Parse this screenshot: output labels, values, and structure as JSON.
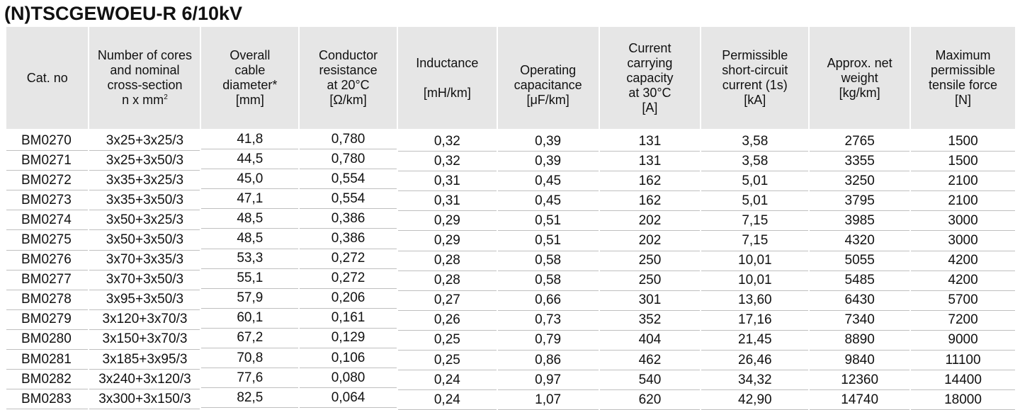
{
  "title": "(N)TSCGEWOEU-R 6/10kV",
  "headers": [
    {
      "lines": [
        "Cat. no"
      ]
    },
    {
      "lines": [
        "Number of cores",
        "and nominal",
        "cross-section",
        "n x mm"
      ],
      "sup": "2"
    },
    {
      "lines": [
        "Overall",
        "cable",
        "diameter*",
        "[mm]"
      ]
    },
    {
      "lines": [
        "Conductor",
        "resistance",
        "at 20°C",
        "[Ω/km]"
      ]
    },
    {
      "lines": [
        "Inductance",
        "",
        "[mH/km]"
      ]
    },
    {
      "lines": [
        "",
        "Operating",
        "capacitance",
        "[μF/km]"
      ]
    },
    {
      "lines": [
        "Current",
        "carrying",
        "capacity",
        "at 30°C",
        "[A]"
      ]
    },
    {
      "lines": [
        "Permissible",
        "short-circuit",
        "current (1s)",
        "[kA]"
      ]
    },
    {
      "lines": [
        "Approx. net",
        "weight",
        "[kg/km]"
      ]
    },
    {
      "lines": [
        "Maximum",
        "permissible",
        "tensile force",
        "[N]"
      ]
    }
  ],
  "rows": [
    [
      "BM0270",
      "3x25+3x25/3",
      "41,8",
      "0,780",
      "0,32",
      "0,39",
      "131",
      "3,58",
      "2765",
      "1500"
    ],
    [
      "BM0271",
      "3x25+3x50/3",
      "44,5",
      "0,780",
      "0,32",
      "0,39",
      "131",
      "3,58",
      "3355",
      "1500"
    ],
    [
      "BM0272",
      "3x35+3x25/3",
      "45,0",
      "0,554",
      "0,31",
      "0,45",
      "162",
      "5,01",
      "3250",
      "2100"
    ],
    [
      "BM0273",
      "3x35+3x50/3",
      "47,1",
      "0,554",
      "0,31",
      "0,45",
      "162",
      "5,01",
      "3795",
      "2100"
    ],
    [
      "BM0274",
      "3x50+3x25/3",
      "48,5",
      "0,386",
      "0,29",
      "0,51",
      "202",
      "7,15",
      "3985",
      "3000"
    ],
    [
      "BM0275",
      "3x50+3x50/3",
      "48,5",
      "0,386",
      "0,29",
      "0,51",
      "202",
      "7,15",
      "4320",
      "3000"
    ],
    [
      "BM0276",
      "3x70+3x35/3",
      "53,3",
      "0,272",
      "0,28",
      "0,58",
      "250",
      "10,01",
      "5055",
      "4200"
    ],
    [
      "BM0277",
      "3x70+3x50/3",
      "55,1",
      "0,272",
      "0,28",
      "0,58",
      "250",
      "10,01",
      "5485",
      "4200"
    ],
    [
      "BM0278",
      "3x95+3x50/3",
      "57,9",
      "0,206",
      "0,27",
      "0,66",
      "301",
      "13,60",
      "6430",
      "5700"
    ],
    [
      "BM0279",
      "3x120+3x70/3",
      "60,1",
      "0,161",
      "0,26",
      "0,73",
      "352",
      "17,16",
      "7340",
      "7200"
    ],
    [
      "BM0280",
      "3x150+3x70/3",
      "67,2",
      "0,129",
      "0,25",
      "0,79",
      "404",
      "21,45",
      "8890",
      "9000"
    ],
    [
      "BM0281",
      "3x185+3x95/3",
      "70,8",
      "0,106",
      "0,25",
      "0,86",
      "462",
      "26,46",
      "9840",
      "11100"
    ],
    [
      "BM0282",
      "3x240+3x120/3",
      "77,6",
      "0,080",
      "0,24",
      "0,97",
      "540",
      "34,32",
      "12360",
      "14400"
    ],
    [
      "BM0283",
      "3x300+3x150/3",
      "82,5",
      "0,064",
      "0,24",
      "1,07",
      "620",
      "42,90",
      "14740",
      "18000"
    ]
  ]
}
